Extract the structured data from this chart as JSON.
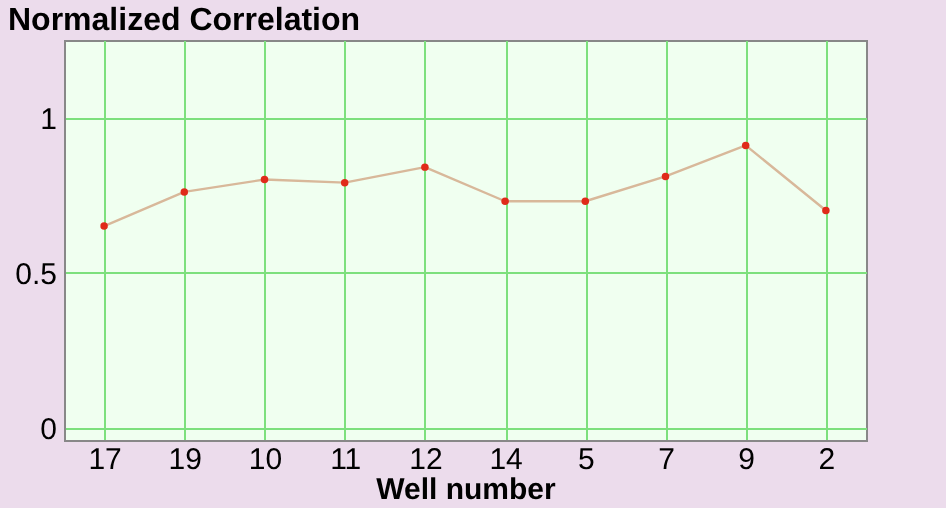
{
  "chart_data": {
    "type": "line",
    "title": "Normalized Correlation",
    "xlabel": "Well number",
    "categories": [
      "17",
      "19",
      "10",
      "11",
      "12",
      "14",
      "5",
      "7",
      "9",
      "2"
    ],
    "series": [
      {
        "color": "#d8b89a",
        "values": [
          0.65,
          0.76,
          0.8,
          0.79,
          0.84,
          0.73,
          0.73,
          0.81,
          0.91,
          0.7
        ]
      }
    ],
    "ylim": [
      -0.04,
      1.25
    ],
    "yticks": [
      0,
      0.5,
      1
    ],
    "grid": true,
    "marker": "circle",
    "line_style": "solid"
  }
}
